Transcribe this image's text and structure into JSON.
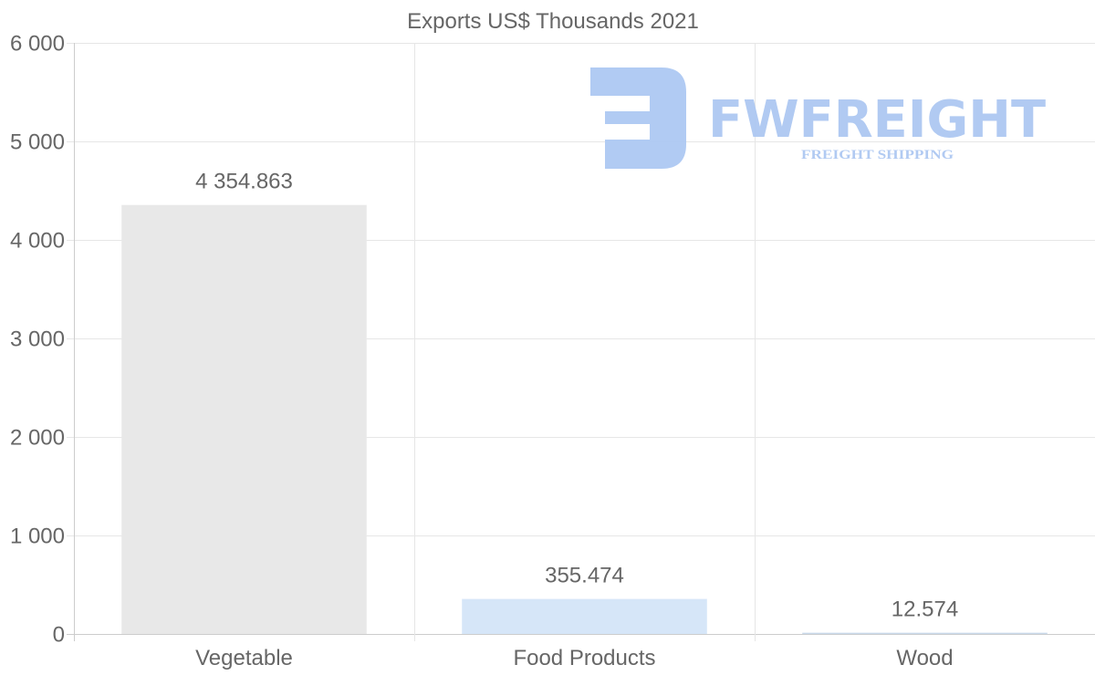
{
  "chart_data": {
    "type": "bar",
    "title": "Exports US$ Thousands 2021",
    "categories": [
      "Vegetable",
      "Food Products",
      "Wood"
    ],
    "values": [
      4354.863,
      355.474,
      12.574
    ],
    "data_labels": [
      "4 354.863",
      "355.474",
      "12.574"
    ],
    "bar_colors": [
      "#e8e8e8",
      "#d6e6f8",
      "#c9d9ea"
    ],
    "ylim": [
      0,
      6000
    ],
    "yticks": [
      0,
      1000,
      2000,
      3000,
      4000,
      5000,
      6000
    ],
    "ytick_labels": [
      "0",
      "1 000",
      "2 000",
      "3 000",
      "4 000",
      "5 000",
      "6 000"
    ],
    "xlabel": "",
    "ylabel": "",
    "grid": true,
    "legend": "none"
  },
  "watermark": {
    "brand": "FWFREIGHT",
    "tagline": "FREIGHT SHIPPING",
    "color": "#adc8f2"
  }
}
